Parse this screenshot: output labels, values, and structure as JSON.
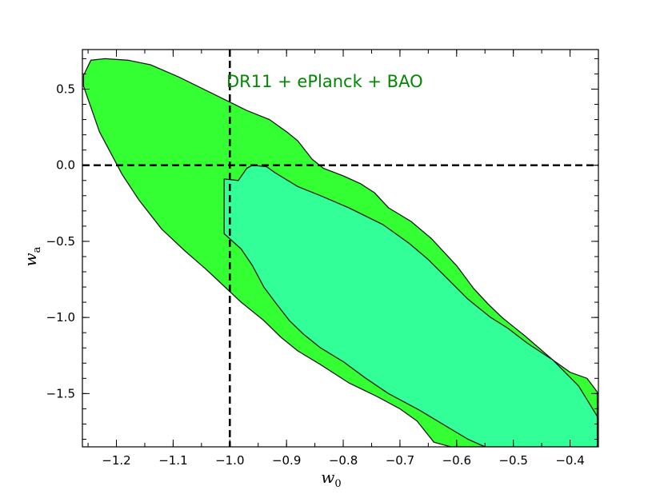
{
  "chart_data": {
    "type": "contour",
    "title": "",
    "annotation": "DR11 + ePlanck + BAO",
    "xlabel": {
      "base": "w",
      "sub": "0"
    },
    "ylabel": {
      "base": "w",
      "sub": "a"
    },
    "xlim": [
      -1.26,
      -0.35
    ],
    "ylim": [
      -1.85,
      0.76
    ],
    "xticks": [
      -1.2,
      -1.1,
      -1.0,
      -0.9,
      -0.8,
      -0.7,
      -0.6,
      -0.5,
      -0.4
    ],
    "xtick_labels": [
      "−1.2",
      "−1.1",
      "−1.0",
      "−0.9",
      "−0.8",
      "−0.7",
      "−0.6",
      "−0.5",
      "−0.4"
    ],
    "yticks": [
      0.5,
      0.0,
      -0.5,
      -1.0,
      -1.5
    ],
    "ytick_labels": [
      "0.5",
      "0.0",
      "−0.5",
      "−1.0",
      "−1.5"
    ],
    "reference_lines": [
      {
        "orientation": "vertical",
        "value": -1.0,
        "style": "dashed"
      },
      {
        "orientation": "horizontal",
        "value": 0.0,
        "style": "dashed"
      }
    ],
    "colors": {
      "outer_contour": "#33ff33",
      "inner_contour": "#33ff99",
      "annotation": "#008800",
      "reference_lines": "#000000",
      "contour_edge": "#1a1a1a"
    },
    "contours": [
      {
        "level": "95%",
        "points": [
          [
            -1.258,
            0.59
          ],
          [
            -1.245,
            0.69
          ],
          [
            -1.22,
            0.7
          ],
          [
            -1.18,
            0.69
          ],
          [
            -1.14,
            0.66
          ],
          [
            -1.09,
            0.58
          ],
          [
            -1.03,
            0.47
          ],
          [
            -0.97,
            0.36
          ],
          [
            -0.93,
            0.3
          ],
          [
            -0.9,
            0.22
          ],
          [
            -0.88,
            0.16
          ],
          [
            -0.855,
            0.04
          ],
          [
            -0.835,
            -0.02
          ],
          [
            -0.8,
            -0.07
          ],
          [
            -0.77,
            -0.12
          ],
          [
            -0.745,
            -0.18
          ],
          [
            -0.72,
            -0.28
          ],
          [
            -0.68,
            -0.37
          ],
          [
            -0.645,
            -0.48
          ],
          [
            -0.6,
            -0.66
          ],
          [
            -0.57,
            -0.81
          ],
          [
            -0.545,
            -0.91
          ],
          [
            -0.52,
            -1.0
          ],
          [
            -0.48,
            -1.12
          ],
          [
            -0.43,
            -1.28
          ],
          [
            -0.4,
            -1.36
          ],
          [
            -0.37,
            -1.4
          ],
          [
            -0.352,
            -1.49
          ],
          [
            -0.352,
            -1.85
          ],
          [
            -0.61,
            -1.85
          ],
          [
            -0.64,
            -1.82
          ],
          [
            -0.67,
            -1.68
          ],
          [
            -0.7,
            -1.6
          ],
          [
            -0.74,
            -1.52
          ],
          [
            -0.79,
            -1.43
          ],
          [
            -0.84,
            -1.31
          ],
          [
            -0.88,
            -1.22
          ],
          [
            -0.91,
            -1.13
          ],
          [
            -0.94,
            -1.02
          ],
          [
            -0.98,
            -0.9
          ],
          [
            -1.04,
            -0.69
          ],
          [
            -1.08,
            -0.56
          ],
          [
            -1.12,
            -0.42
          ],
          [
            -1.16,
            -0.23
          ],
          [
            -1.19,
            -0.06
          ],
          [
            -1.23,
            0.22
          ],
          [
            -1.258,
            0.52
          ]
        ]
      },
      {
        "level": "68%",
        "points": [
          [
            -0.985,
            -0.1
          ],
          [
            -0.97,
            -0.02
          ],
          [
            -0.96,
            0.0
          ],
          [
            -0.935,
            -0.01
          ],
          [
            -0.92,
            -0.05
          ],
          [
            -0.88,
            -0.14
          ],
          [
            -0.84,
            -0.2
          ],
          [
            -0.79,
            -0.28
          ],
          [
            -0.73,
            -0.39
          ],
          [
            -0.685,
            -0.51
          ],
          [
            -0.65,
            -0.62
          ],
          [
            -0.615,
            -0.75
          ],
          [
            -0.58,
            -0.88
          ],
          [
            -0.54,
            -1.0
          ],
          [
            -0.51,
            -1.07
          ],
          [
            -0.475,
            -1.17
          ],
          [
            -0.43,
            -1.28
          ],
          [
            -0.385,
            -1.45
          ],
          [
            -0.352,
            -1.65
          ],
          [
            -0.352,
            -1.85
          ],
          [
            -0.55,
            -1.85
          ],
          [
            -0.58,
            -1.8
          ],
          [
            -0.625,
            -1.7
          ],
          [
            -0.665,
            -1.61
          ],
          [
            -0.72,
            -1.5
          ],
          [
            -0.76,
            -1.4
          ],
          [
            -0.8,
            -1.29
          ],
          [
            -0.84,
            -1.2
          ],
          [
            -0.87,
            -1.11
          ],
          [
            -0.895,
            -1.02
          ],
          [
            -0.92,
            -0.9
          ],
          [
            -0.94,
            -0.8
          ],
          [
            -0.96,
            -0.66
          ],
          [
            -0.98,
            -0.55
          ],
          [
            -1.01,
            -0.45
          ],
          [
            -1.01,
            -0.09
          ]
        ]
      }
    ]
  }
}
